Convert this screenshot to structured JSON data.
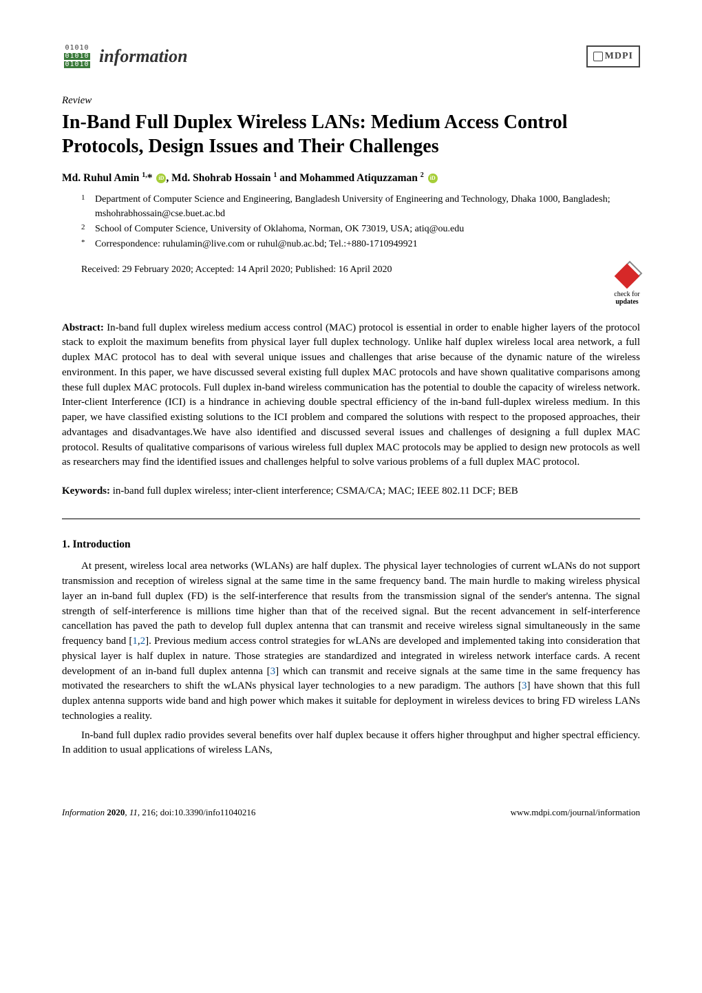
{
  "header": {
    "logo_rows": [
      "01010",
      "01010",
      "01010"
    ],
    "journal_name": "information",
    "publisher": "MDPI"
  },
  "article_type": "Review",
  "title": "In-Band Full Duplex Wireless LANs: Medium Access Control Protocols, Design Issues and Their Challenges",
  "authors_html": "Md. Ruhul Amin <sup>1,</sup>* <span class='orcid' data-name='orcid-icon' data-interactable='false'></span>, Md. Shohrab Hossain <sup>1</sup> and Mohammed Atiquzzaman <sup>2</sup> <span class='orcid' data-name='orcid-icon' data-interactable='false'></span>",
  "affiliations": [
    {
      "num": "1",
      "text": "Department of Computer Science and Engineering, Bangladesh University of Engineering and Technology, Dhaka 1000, Bangladesh; mshohrabhossain@cse.buet.ac.bd"
    },
    {
      "num": "2",
      "text": "School of Computer Science, University of Oklahoma, Norman, OK 73019, USA; atiq@ou.edu"
    },
    {
      "num": "*",
      "text": "Correspondence: ruhulamin@live.com or ruhul@nub.ac.bd; Tel.:+880-1710949921"
    }
  ],
  "received": "Received: 29 February 2020; Accepted: 14 April 2020; Published: 16 April 2020",
  "updates": {
    "line1": "check for",
    "line2": "updates"
  },
  "abstract": {
    "label": "Abstract:",
    "text": "In-band full duplex wireless medium access control (MAC) protocol is essential in order to enable higher layers of the protocol stack to exploit the maximum benefits from physical layer full duplex technology. Unlike half duplex wireless local area network, a full duplex MAC protocol has to deal with several unique issues and challenges that arise because of the dynamic nature of the wireless environment. In this paper, we have discussed several existing full duplex MAC protocols and have shown qualitative comparisons among these full duplex MAC protocols. Full duplex in-band wireless communication has the potential to double the capacity of wireless network. Inter-client Interference (ICI) is a hindrance in achieving double spectral efficiency of the in-band full-duplex wireless medium. In this paper, we have classified existing solutions to the ICI problem and compared the solutions with respect to the proposed approaches, their advantages and disadvantages.We have also identified and discussed several issues and challenges of designing a full duplex MAC protocol. Results of qualitative comparisons of various wireless full duplex MAC protocols may be applied to design new protocols as well as researchers may find the identified issues and challenges helpful to solve various problems of a full duplex MAC protocol."
  },
  "keywords": {
    "label": "Keywords:",
    "text": "in-band full duplex wireless; inter-client interference; CSMA/CA; MAC; IEEE 802.11 DCF; BEB"
  },
  "section": {
    "heading": "1. Introduction",
    "p1_html": "At present, wireless local area networks (WLANs) are half duplex. The physical layer technologies of current wLANs do not support transmission and reception of wireless signal at the same time in the same frequency band. The main hurdle to making wireless physical layer an in-band full duplex (FD) is the self-interference that results from the transmission signal of the sender's antenna. The signal strength of self-interference is millions time higher than that of the received signal. But the recent advancement in self-interference cancellation has paved the path to develop full duplex antenna that can transmit and receive wireless signal simultaneously in the same frequency band [<span class='ref-link' data-name='citation-link' data-interactable='true'>1</span>,<span class='ref-link' data-name='citation-link' data-interactable='true'>2</span>]. Previous medium access control strategies for wLANs are developed and implemented taking into consideration that physical layer is half duplex in nature. Those strategies are standardized and integrated in wireless network interface cards. A recent development of an in-band full duplex antenna [<span class='ref-link' data-name='citation-link' data-interactable='true'>3</span>] which can transmit and receive signals at the same time in the same frequency has motivated the researchers to shift the wLANs physical layer technologies to a new paradigm. The authors [<span class='ref-link' data-name='citation-link' data-interactable='true'>3</span>] have shown that this full duplex antenna supports wide band and high power which makes it suitable for deployment in wireless devices to bring FD wireless LANs technologies a reality.",
    "p2": "In-band full duplex radio provides several benefits over half duplex because it offers higher throughput and higher spectral efficiency. In addition to usual applications of wireless LANs,"
  },
  "footer": {
    "left_html": "<i>Information</i> <b>2020</b>, <i>11</i>, 216; doi:10.3390/info11040216",
    "right": "www.mdpi.com/journal/information"
  }
}
